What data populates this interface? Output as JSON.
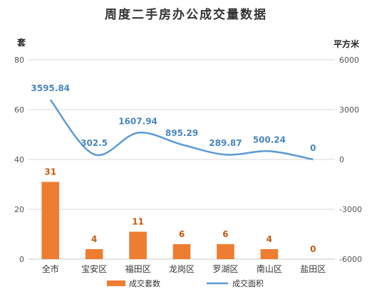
{
  "chart_data": {
    "type": "bar+line",
    "title": "周度二手房办公成交量数据",
    "categories": [
      "全市",
      "宝安区",
      "福田区",
      "龙岗区",
      "罗湖区",
      "南山区",
      "盐田区"
    ],
    "series": [
      {
        "name": "成交套数",
        "type": "bar",
        "axis": "left",
        "values": [
          31,
          4,
          11,
          6,
          6,
          4,
          0
        ],
        "labels": [
          "31",
          "4",
          "11",
          "6",
          "6",
          "4",
          "0"
        ],
        "color": "#ed7d31"
      },
      {
        "name": "成交面积",
        "type": "line",
        "axis": "right",
        "smooth": true,
        "values": [
          3595.84,
          302.5,
          1607.94,
          895.29,
          289.87,
          500.24,
          0
        ],
        "labels": [
          "3595.84",
          "302.5",
          "1607.94",
          "895.29",
          "289.87",
          "500.24",
          "0"
        ],
        "color": "#5b9bd5"
      }
    ],
    "y_left": {
      "label": "套",
      "ylim": [
        0,
        80
      ],
      "ticks": [
        "0",
        "20",
        "40",
        "60",
        "80"
      ]
    },
    "y_right": {
      "label": "平方米",
      "ylim": [
        -6000,
        6000
      ],
      "ticks": [
        "-6000",
        "-3000",
        "0",
        "3000",
        "6000"
      ]
    },
    "grid": true,
    "legend": "bottom"
  }
}
